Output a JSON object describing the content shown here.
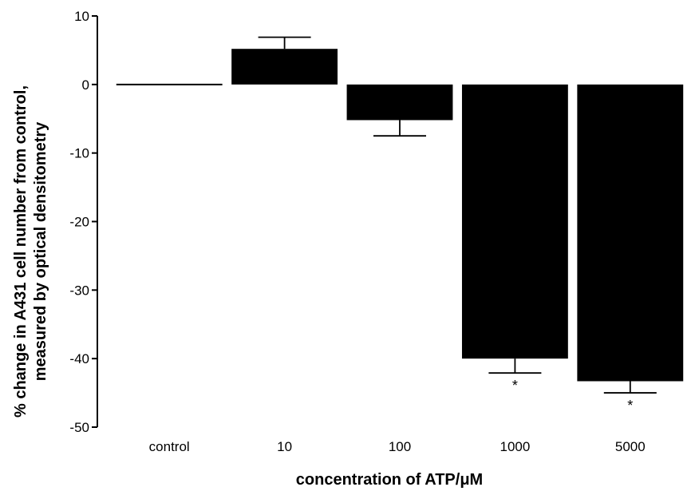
{
  "chart_data": {
    "type": "bar",
    "title": "",
    "xlabel": "concentration of ATP/μM",
    "ylabel_lines": [
      "% change in A431 cell number from control,",
      "measured by optical densitometry"
    ],
    "categories": [
      "control",
      "10",
      "100",
      "1000",
      "5000"
    ],
    "values": [
      0,
      5.2,
      -5.2,
      -40,
      -43.3
    ],
    "errors": [
      0,
      1.7,
      2.3,
      2.1,
      1.7
    ],
    "significance": [
      "",
      "",
      "",
      "*",
      "*"
    ],
    "ylim": [
      -50,
      10
    ],
    "yticks": [
      "10",
      "0",
      "-10",
      "-20",
      "-30",
      "-40",
      "-50"
    ],
    "ytick_values": [
      10,
      0,
      -10,
      -20,
      -30,
      -40,
      -50
    ],
    "grid": false,
    "bar_color": "#000000"
  }
}
